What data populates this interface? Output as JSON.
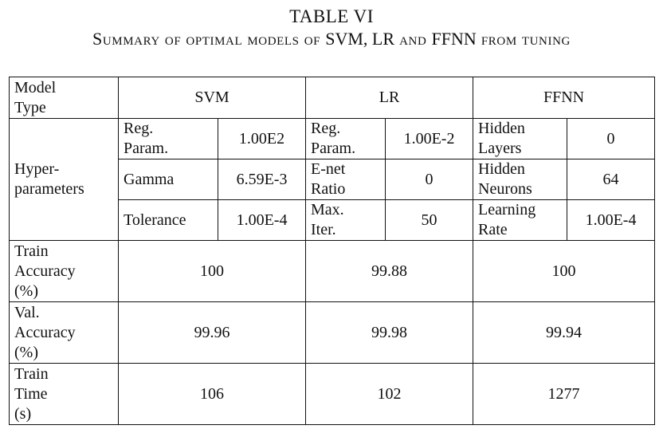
{
  "table_label": "TABLE VI",
  "caption": {
    "part1": "Summary of optimal models of ",
    "part2": "SVM, LR",
    "part3": " and ",
    "part4": "FFNN",
    "part5": " from tuning"
  },
  "header": {
    "row_label_line1": "Model",
    "row_label_line2": "Type",
    "svm": "SVM",
    "lr": "LR",
    "ffnn": "FFNN"
  },
  "hyper": {
    "label_line1": "Hyper-",
    "label_line2": "parameters",
    "svm": [
      {
        "name_line1": "Reg.",
        "name_line2": "Param.",
        "value": "1.00E2"
      },
      {
        "name_line1": "Gamma",
        "name_line2": "",
        "value": "6.59E-3"
      },
      {
        "name_line1": "Tolerance",
        "name_line2": "",
        "value": "1.00E-4"
      }
    ],
    "lr": [
      {
        "name_line1": "Reg.",
        "name_line2": "Param.",
        "value": "1.00E-2"
      },
      {
        "name_line1": "E-net",
        "name_line2": "Ratio",
        "value": "0"
      },
      {
        "name_line1": "Max.",
        "name_line2": "Iter.",
        "value": "50"
      }
    ],
    "ffnn": [
      {
        "name_line1": "Hidden",
        "name_line2": "Layers",
        "value": "0"
      },
      {
        "name_line1": "Hidden",
        "name_line2": "Neurons",
        "value": "64"
      },
      {
        "name_line1": "Learning",
        "name_line2": "Rate",
        "value": "1.00E-4"
      }
    ]
  },
  "metrics": [
    {
      "label_line1": "Train",
      "label_line2": "Accuracy",
      "label_line3": "(%)",
      "svm": "100",
      "lr": "99.88",
      "ffnn": "100"
    },
    {
      "label_line1": "Val.",
      "label_line2": "Accuracy",
      "label_line3": "(%)",
      "svm": "99.96",
      "lr": "99.98",
      "ffnn": "99.94"
    },
    {
      "label_line1": "Train",
      "label_line2": "Time",
      "label_line3": "(s)",
      "svm": "106",
      "lr": "102",
      "ffnn": "1277"
    }
  ]
}
